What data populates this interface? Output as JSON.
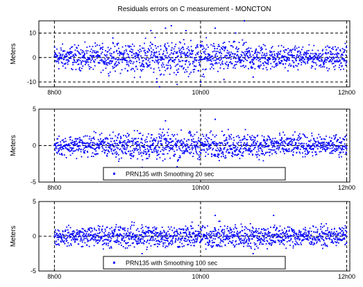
{
  "chart_data": [
    {
      "type": "scatter",
      "title": "Residuals errors on C measurement - MONCTON",
      "ylabel": "Meters",
      "ylim": [
        -12,
        15
      ],
      "yticks": [
        -10,
        0,
        10
      ],
      "xtick_labels": [
        "8h00",
        "10h00",
        "12h00"
      ],
      "grid": true,
      "grid_style": "dashed",
      "legend": null,
      "series": [
        {
          "color": "#0000ff",
          "band": [
            [
              0,
              7.5
            ],
            [
              0.1,
              7
            ],
            [
              0.2,
              8
            ],
            [
              0.3,
              10
            ],
            [
              0.4,
              10
            ],
            [
              0.5,
              9.5
            ],
            [
              0.6,
              9
            ],
            [
              0.7,
              8
            ],
            [
              0.8,
              6.5
            ],
            [
              0.9,
              6
            ],
            [
              1.0,
              7
            ]
          ],
          "outliers": [
            [
              0.2,
              8
            ],
            [
              0.33,
              11
            ],
            [
              0.38,
              12
            ],
            [
              0.4,
              13
            ],
            [
              0.45,
              11
            ],
            [
              0.55,
              12
            ],
            [
              0.62,
              10
            ],
            [
              0.65,
              15
            ],
            [
              0.42,
              -11
            ],
            [
              0.35,
              -10
            ],
            [
              0.36,
              -12
            ],
            [
              0.5,
              -10
            ],
            [
              0.58,
              -9
            ],
            [
              0.68,
              -8
            ]
          ]
        }
      ]
    },
    {
      "type": "scatter",
      "title": "",
      "ylabel": "Meters",
      "ylim": [
        -5,
        5
      ],
      "yticks": [
        -5,
        0,
        5
      ],
      "xtick_labels": [
        "8h00",
        "10h00",
        "12h00"
      ],
      "grid": true,
      "grid_style": "dashed",
      "legend": {
        "label": "PRN135 with Smoothing 20 sec",
        "placement": "bottom-center"
      },
      "series": [
        {
          "name": "PRN135 with Smoothing 20 sec",
          "color": "#0000ff",
          "band": [
            [
              0,
              1.8
            ],
            [
              0.1,
              2.2
            ],
            [
              0.2,
              2.5
            ],
            [
              0.3,
              2.8
            ],
            [
              0.4,
              2.8
            ],
            [
              0.5,
              2.5
            ],
            [
              0.6,
              2.6
            ],
            [
              0.7,
              2.6
            ],
            [
              0.8,
              2.2
            ],
            [
              0.9,
              2.0
            ],
            [
              1.0,
              2.0
            ]
          ],
          "outliers": [
            [
              0.38,
              3.4
            ],
            [
              0.55,
              3.6
            ],
            [
              0.3,
              -3
            ],
            [
              0.42,
              -2.9
            ]
          ]
        }
      ]
    },
    {
      "type": "scatter",
      "title": "",
      "ylabel": "Meters",
      "ylim": [
        -5,
        5
      ],
      "yticks": [
        -5,
        0,
        5
      ],
      "xtick_labels": [
        "8h00",
        "10h00",
        "12h00"
      ],
      "grid": true,
      "grid_style": "dashed",
      "legend": {
        "label": "PRN135 with Smoothing 100 sec",
        "placement": "bottom-center"
      },
      "series": [
        {
          "name": "PRN135 with Smoothing 100 sec",
          "color": "#0000ff",
          "band": [
            [
              0,
              1.8
            ],
            [
              0.1,
              2.0
            ],
            [
              0.2,
              2.4
            ],
            [
              0.3,
              2.6
            ],
            [
              0.4,
              2.4
            ],
            [
              0.5,
              2.4
            ],
            [
              0.6,
              2.5
            ],
            [
              0.7,
              2.5
            ],
            [
              0.8,
              2.2
            ],
            [
              0.9,
              2.0
            ],
            [
              1.0,
              2.0
            ]
          ],
          "outliers": [
            [
              0.55,
              3.0
            ],
            [
              0.75,
              3.0
            ],
            [
              0.3,
              -2.5
            ],
            [
              0.35,
              -3.0
            ],
            [
              0.68,
              -2.5
            ]
          ]
        }
      ]
    }
  ]
}
